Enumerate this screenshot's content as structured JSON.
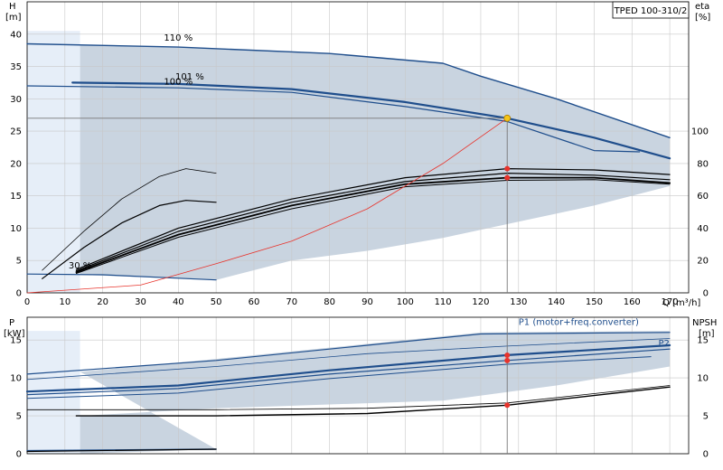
{
  "chart_data": {
    "type": "line",
    "model_label": "TPED 100-310/2",
    "x_axis": {
      "title": "Q [m³/h]",
      "ticks": [
        0,
        10,
        20,
        30,
        40,
        50,
        60,
        70,
        80,
        90,
        100,
        110,
        120,
        130,
        140,
        150,
        160,
        170
      ],
      "range": [
        0,
        175
      ]
    },
    "top": {
      "left_axis": {
        "unit_top": "H",
        "unit_bottom": "[m]",
        "ticks": [
          0,
          5,
          10,
          15,
          20,
          25,
          30,
          35,
          40
        ],
        "range": [
          0,
          45
        ]
      },
      "right_axis": {
        "unit_top": "eta",
        "unit_bottom": "[%]",
        "ticks": [
          0,
          20,
          40,
          60,
          80,
          100
        ],
        "range": [
          0,
          180
        ]
      },
      "speed_labels": [
        {
          "text": "110 %",
          "x": 40,
          "y": 39
        },
        {
          "text": "101 %",
          "x": 43,
          "y": 33
        },
        {
          "text": "100 %",
          "x": 40,
          "y": 32.2
        },
        {
          "text": "30 %",
          "x": 14,
          "y": 3.8
        }
      ],
      "envelope": {
        "upper": [
          [
            14,
            38.3
          ],
          [
            40,
            38.0
          ],
          [
            80,
            37.0
          ],
          [
            110,
            35.5
          ],
          [
            120,
            33.5
          ],
          [
            140,
            30.0
          ],
          [
            155,
            27.0
          ],
          [
            170,
            24.0
          ]
        ],
        "lower": [
          [
            170,
            16.5
          ],
          [
            150,
            13.5
          ],
          [
            130,
            11.0
          ],
          [
            110,
            8.5
          ],
          [
            90,
            6.5
          ],
          [
            70,
            5.0
          ],
          [
            50,
            2.0
          ],
          [
            14,
            2.8
          ],
          [
            14,
            30
          ]
        ]
      },
      "series": [
        {
          "name": "110 %",
          "color": "#1f4e8c",
          "width": 1.4,
          "points": [
            [
              0,
              38.5
            ],
            [
              40,
              38.0
            ],
            [
              80,
              37.0
            ],
            [
              110,
              35.5
            ],
            [
              120,
              33.5
            ],
            [
              140,
              30.0
            ],
            [
              155,
              27.0
            ],
            [
              170,
              24.0
            ]
          ]
        },
        {
          "name": "101 %",
          "color": "#1f4e8c",
          "width": 2.2,
          "points": [
            [
              12,
              32.5
            ],
            [
              40,
              32.3
            ],
            [
              70,
              31.5
            ],
            [
              100,
              29.5
            ],
            [
              127,
              27.0
            ],
            [
              150,
              24.0
            ],
            [
              170,
              20.8
            ]
          ]
        },
        {
          "name": "100 %",
          "color": "#1f4e8c",
          "width": 1.2,
          "points": [
            [
              0,
              32.0
            ],
            [
              40,
              31.7
            ],
            [
              70,
              31.0
            ],
            [
              100,
              28.8
            ],
            [
              127,
              26.5
            ],
            [
              150,
              22.0
            ],
            [
              162,
              21.8
            ]
          ]
        },
        {
          "name": "30 %",
          "color": "#1f4e8c",
          "width": 1.2,
          "points": [
            [
              0,
              2.9
            ],
            [
              20,
              2.8
            ],
            [
              50,
              2.0
            ]
          ]
        },
        {
          "name": "",
          "color": "#000000",
          "width": 0.8,
          "points": [
            [
              4,
              3.5
            ],
            [
              15,
              9.5
            ],
            [
              25,
              14.5
            ],
            [
              35,
              18.0
            ],
            [
              42,
              19.2
            ],
            [
              50,
              18.5
            ]
          ]
        },
        {
          "name": "",
          "color": "#000000",
          "width": 1.2,
          "points": [
            [
              4,
              2.2
            ],
            [
              15,
              7.0
            ],
            [
              25,
              10.8
            ],
            [
              35,
              13.5
            ],
            [
              42,
              14.3
            ],
            [
              50,
              14.0
            ]
          ]
        },
        {
          "name": "",
          "color": "#000000",
          "width": 1.2,
          "points": [
            [
              13,
              3.6
            ],
            [
              40,
              10.0
            ],
            [
              70,
              14.5
            ],
            [
              100,
              17.8
            ],
            [
              127,
              19.2
            ],
            [
              150,
              19.0
            ],
            [
              170,
              18.3
            ]
          ]
        },
        {
          "name": "",
          "color": "#000000",
          "width": 1.2,
          "points": [
            [
              13,
              3.4
            ],
            [
              40,
              9.5
            ],
            [
              70,
              14.0
            ],
            [
              100,
              17.2
            ],
            [
              127,
              18.5
            ],
            [
              150,
              18.2
            ],
            [
              170,
              17.5
            ]
          ]
        },
        {
          "name": "",
          "color": "#000000",
          "width": 1.8,
          "points": [
            [
              13,
              3.2
            ],
            [
              40,
              9.0
            ],
            [
              70,
              13.5
            ],
            [
              100,
              16.8
            ],
            [
              127,
              17.8
            ],
            [
              150,
              17.8
            ],
            [
              170,
              17.0
            ]
          ]
        },
        {
          "name": "",
          "color": "#000000",
          "width": 1.0,
          "points": [
            [
              13,
              3.0
            ],
            [
              40,
              8.6
            ],
            [
              70,
              13.0
            ],
            [
              100,
              16.4
            ],
            [
              127,
              17.4
            ],
            [
              150,
              17.5
            ],
            [
              170,
              16.8
            ]
          ]
        },
        {
          "name": "",
          "color": "#e8332b",
          "width": 0.8,
          "points": [
            [
              0,
              0
            ],
            [
              30,
              1.2
            ],
            [
              50,
              4.5
            ],
            [
              70,
              8.0
            ],
            [
              90,
              13.0
            ],
            [
              100,
              16.5
            ],
            [
              110,
              20.0
            ],
            [
              127,
              27.0
            ]
          ]
        }
      ],
      "operating_point": {
        "x": 127,
        "y": 27.0
      },
      "red_points": [
        [
          127,
          19.2
        ],
        [
          127,
          17.8
        ]
      ]
    },
    "bottom": {
      "left_axis": {
        "unit_top": "P",
        "unit_bottom": "[kW]",
        "ticks": [
          0,
          5,
          10,
          15
        ],
        "range": [
          0,
          18
        ]
      },
      "right_axis": {
        "unit_top": "NPSH",
        "unit_bottom": "[m]",
        "ticks": [
          0,
          5,
          10,
          15
        ],
        "range": [
          0,
          18
        ]
      },
      "labels": [
        {
          "text": "P1 (motor+freq.converter)",
          "x": 130,
          "y": 17.0
        },
        {
          "text": "P2",
          "x": 167,
          "y": 14.2
        }
      ],
      "envelope": {
        "upper": [
          [
            14,
            10.8
          ],
          [
            50,
            12.5
          ],
          [
            90,
            14.5
          ],
          [
            120,
            16.0
          ],
          [
            170,
            16.2
          ]
        ],
        "lower": [
          [
            170,
            11.5
          ],
          [
            140,
            9.0
          ],
          [
            110,
            7.0
          ],
          [
            80,
            6.5
          ],
          [
            50,
            6.0
          ],
          [
            14,
            5.0
          ],
          [
            14,
            0
          ],
          [
            50,
            0.6
          ]
        ]
      },
      "series": [
        {
          "name": "",
          "color": "#1f4e8c",
          "width": 1.2,
          "points": [
            [
              0,
              10.5
            ],
            [
              50,
              12.3
            ],
            [
              90,
              14.3
            ],
            [
              120,
              15.8
            ],
            [
              170,
              16.0
            ]
          ]
        },
        {
          "name": "",
          "color": "#1f4e8c",
          "width": 0.8,
          "points": [
            [
              0,
              9.8
            ],
            [
              50,
              11.5
            ],
            [
              90,
              13.2
            ],
            [
              127,
              14.2
            ],
            [
              170,
              15.2
            ]
          ]
        },
        {
          "name": "",
          "color": "#1f4e8c",
          "width": 2.2,
          "points": [
            [
              0,
              8.2
            ],
            [
              40,
              9.0
            ],
            [
              80,
              11.0
            ],
            [
              127,
              13.0
            ],
            [
              170,
              14.3
            ]
          ]
        },
        {
          "name": "",
          "color": "#1f4e8c",
          "width": 1.2,
          "points": [
            [
              0,
              7.8
            ],
            [
              40,
              8.6
            ],
            [
              80,
              10.5
            ],
            [
              127,
              12.3
            ],
            [
              170,
              13.8
            ]
          ]
        },
        {
          "name": "",
          "color": "#1f4e8c",
          "width": 1.0,
          "points": [
            [
              0,
              7.3
            ],
            [
              40,
              8.0
            ],
            [
              80,
              9.9
            ],
            [
              127,
              11.8
            ],
            [
              165,
              12.8
            ]
          ]
        },
        {
          "name": "",
          "color": "#1f4e8c",
          "width": 1.4,
          "points": [
            [
              0,
              0.4
            ],
            [
              50,
              0.6
            ]
          ]
        },
        {
          "name": "",
          "color": "#000000",
          "width": 0.8,
          "points": [
            [
              0,
              5.8
            ],
            [
              50,
              5.8
            ],
            [
              90,
              6.0
            ],
            [
              127,
              6.7
            ],
            [
              170,
              9.0
            ]
          ]
        },
        {
          "name": "",
          "color": "#000000",
          "width": 1.4,
          "points": [
            [
              13,
              5.0
            ],
            [
              50,
              5.0
            ],
            [
              90,
              5.3
            ],
            [
              127,
              6.4
            ],
            [
              170,
              8.8
            ]
          ]
        },
        {
          "name": "",
          "color": "#000000",
          "width": 1.2,
          "points": [
            [
              0,
              0.3
            ],
            [
              50,
              0.6
            ]
          ]
        }
      ],
      "red_points": [
        [
          127,
          13.0
        ],
        [
          127,
          12.3
        ],
        [
          127,
          6.4
        ]
      ]
    },
    "colors": {
      "envelope_fill": "#c9d4e0",
      "light_fill": "#e6eef8",
      "grid": "#c8c8c8",
      "blue": "#1f4e8c",
      "red": "#e8332b",
      "op_point": "#f5c518"
    }
  }
}
